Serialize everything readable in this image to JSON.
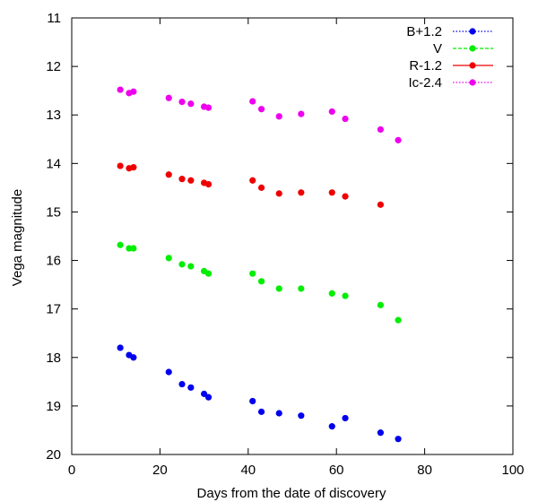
{
  "chart_data": {
    "type": "scatter",
    "xlabel": "Days from the date of discovery",
    "ylabel": "Vega magnitude",
    "xlim": [
      0,
      100
    ],
    "ylim": [
      11,
      20
    ],
    "y_inverted": true,
    "xticks": [
      0,
      20,
      40,
      60,
      80,
      100
    ],
    "yticks": [
      11,
      12,
      13,
      14,
      15,
      16,
      17,
      18,
      19,
      20
    ],
    "grid": false,
    "legend_position": "top-right",
    "series": [
      {
        "name": "B+1.2",
        "color": "#0000ee",
        "line_style": "dotted",
        "x": [
          11,
          13,
          14,
          22,
          25,
          27,
          30,
          31,
          41,
          43,
          47,
          52,
          59,
          62,
          70,
          74
        ],
        "y": [
          17.8,
          17.95,
          18.0,
          18.3,
          18.55,
          18.62,
          18.75,
          18.82,
          18.9,
          19.12,
          19.15,
          19.2,
          19.42,
          19.25,
          19.55,
          19.68
        ]
      },
      {
        "name": "V",
        "color": "#00ee00",
        "line_style": "dashed",
        "x": [
          11,
          13,
          14,
          22,
          25,
          27,
          30,
          31,
          41,
          43,
          47,
          52,
          59,
          62,
          70,
          74
        ],
        "y": [
          15.68,
          15.75,
          15.75,
          15.95,
          16.08,
          16.12,
          16.22,
          16.27,
          16.27,
          16.43,
          16.58,
          16.58,
          16.68,
          16.73,
          16.92,
          17.23
        ]
      },
      {
        "name": "R-1.2",
        "color": "#ee0000",
        "line_style": "solid",
        "x": [
          11,
          13,
          14,
          22,
          25,
          27,
          30,
          31,
          41,
          43,
          47,
          52,
          59,
          62,
          70
        ],
        "y": [
          14.05,
          14.1,
          14.08,
          14.23,
          14.32,
          14.35,
          14.4,
          14.43,
          14.35,
          14.5,
          14.62,
          14.6,
          14.6,
          14.68,
          14.85
        ]
      },
      {
        "name": "Ic-2.4",
        "color": "#ee00ee",
        "line_style": "dotted",
        "x": [
          11,
          13,
          14,
          22,
          25,
          27,
          30,
          31,
          41,
          43,
          47,
          52,
          59,
          62,
          70,
          74
        ],
        "y": [
          12.48,
          12.55,
          12.52,
          12.65,
          12.73,
          12.77,
          12.83,
          12.85,
          12.72,
          12.88,
          13.03,
          12.98,
          12.93,
          13.08,
          13.3,
          13.52
        ]
      }
    ]
  }
}
